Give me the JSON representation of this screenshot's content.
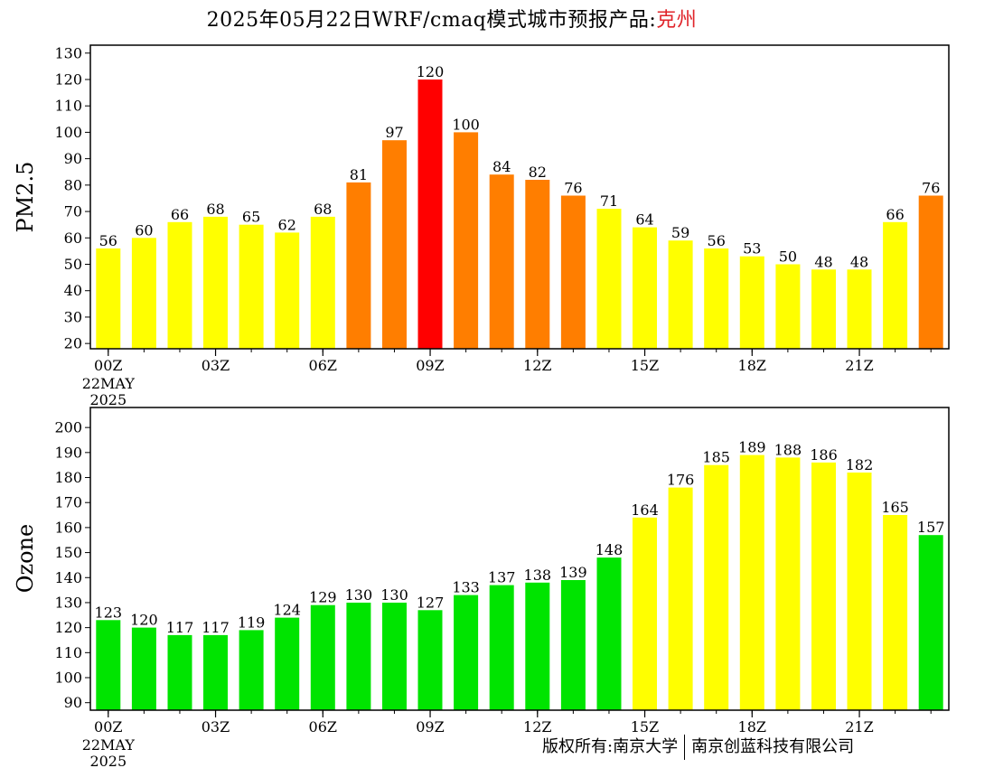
{
  "title": {
    "prefix": "2025年05月22日WRF/cmaq模式城市预报产品:",
    "city": "克州"
  },
  "footer": {
    "left": "版权所有:南京大学",
    "right": "南京创蓝科技有限公司"
  },
  "colors": {
    "good": "#00e400",
    "moderate": "#ffff00",
    "usg": "#ff7e00",
    "unhealthy": "#ff0000",
    "city_title": "#e0242a"
  },
  "chart_data": [
    {
      "type": "bar",
      "ylabel": "PM2.5",
      "ylim": [
        18,
        133
      ],
      "yticks": [
        20,
        30,
        40,
        50,
        60,
        70,
        80,
        90,
        100,
        110,
        120,
        130
      ],
      "x_tick_labels": [
        "00Z",
        "03Z",
        "06Z",
        "09Z",
        "12Z",
        "15Z",
        "18Z",
        "21Z"
      ],
      "x_tick_positions": [
        0,
        3,
        6,
        9,
        12,
        15,
        18,
        21
      ],
      "date_label": [
        "22MAY",
        "2025"
      ],
      "values": [
        56,
        60,
        66,
        68,
        65,
        62,
        68,
        81,
        97,
        120,
        100,
        84,
        82,
        76,
        71,
        64,
        59,
        56,
        53,
        50,
        48,
        48,
        66,
        76
      ],
      "colors": [
        "#ffff00",
        "#ffff00",
        "#ffff00",
        "#ffff00",
        "#ffff00",
        "#ffff00",
        "#ffff00",
        "#ff7e00",
        "#ff7e00",
        "#ff0000",
        "#ff7e00",
        "#ff7e00",
        "#ff7e00",
        "#ff7e00",
        "#ffff00",
        "#ffff00",
        "#ffff00",
        "#ffff00",
        "#ffff00",
        "#ffff00",
        "#ffff00",
        "#ffff00",
        "#ffff00",
        "#ff7e00"
      ]
    },
    {
      "type": "bar",
      "ylabel": "Ozone",
      "ylim": [
        87,
        208
      ],
      "yticks": [
        90,
        100,
        110,
        120,
        130,
        140,
        150,
        160,
        170,
        180,
        190,
        200
      ],
      "x_tick_labels": [
        "00Z",
        "03Z",
        "06Z",
        "09Z",
        "12Z",
        "15Z",
        "18Z",
        "21Z"
      ],
      "x_tick_positions": [
        0,
        3,
        6,
        9,
        12,
        15,
        18,
        21
      ],
      "date_label": [
        "22MAY",
        "2025"
      ],
      "values": [
        123,
        120,
        117,
        117,
        119,
        124,
        129,
        130,
        130,
        127,
        133,
        137,
        138,
        139,
        148,
        164,
        176,
        185,
        189,
        188,
        186,
        182,
        165,
        157
      ],
      "colors": [
        "#00e400",
        "#00e400",
        "#00e400",
        "#00e400",
        "#00e400",
        "#00e400",
        "#00e400",
        "#00e400",
        "#00e400",
        "#00e400",
        "#00e400",
        "#00e400",
        "#00e400",
        "#00e400",
        "#00e400",
        "#ffff00",
        "#ffff00",
        "#ffff00",
        "#ffff00",
        "#ffff00",
        "#ffff00",
        "#ffff00",
        "#ffff00",
        "#00e400"
      ]
    }
  ]
}
